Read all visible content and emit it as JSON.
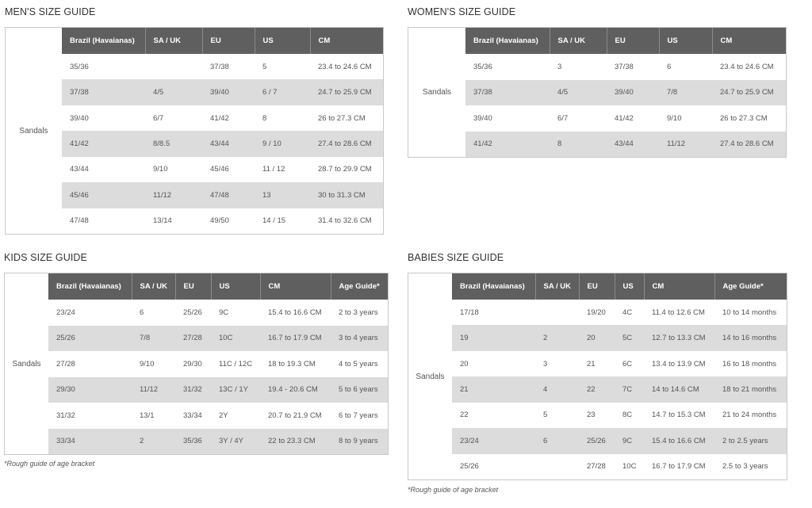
{
  "row_label": "Sandals",
  "footnote": "*Rough guide of age bracket",
  "guides": {
    "men": {
      "title": "MEN'S SIZE GUIDE",
      "headers": [
        "Brazil (Havaianas)",
        "SA / UK",
        "EU",
        "US",
        "CM"
      ],
      "rows": [
        [
          "35/36",
          "",
          "37/38",
          "5",
          "23.4 to 24.6 CM"
        ],
        [
          "37/38",
          "4/5",
          "39/40",
          "6 / 7",
          "24.7 to 25.9 CM"
        ],
        [
          "39/40",
          "6/7",
          "41/42",
          "8",
          "26 to 27.3 CM"
        ],
        [
          "41/42",
          "8/8.5",
          "43/44",
          "9 / 10",
          "27.4 to 28.6 CM"
        ],
        [
          "43/44",
          "9/10",
          "45/46",
          "11 / 12",
          "28.7 to 29.9 CM"
        ],
        [
          "45/46",
          "11/12",
          "47/48",
          "13",
          "30 to 31.3 CM"
        ],
        [
          "47/48",
          "13/14",
          "49/50",
          "14 / 15",
          "31.4 to 32.6 CM"
        ]
      ]
    },
    "women": {
      "title": "WOMEN'S SIZE GUIDE",
      "headers": [
        "Brazil (Havaianas)",
        "SA / UK",
        "EU",
        "US",
        "CM"
      ],
      "rows": [
        [
          "35/36",
          "3",
          "37/38",
          "6",
          "23.4 to 24.6 CM"
        ],
        [
          "37/38",
          "4/5",
          "39/40",
          "7/8",
          "24.7 to 25.9 CM"
        ],
        [
          "39/40",
          "6/7",
          "41/42",
          "9/10",
          "26 to 27.3 CM"
        ],
        [
          "41/42",
          "8",
          "43/44",
          "11/12",
          "27.4 to 28.6 CM"
        ]
      ]
    },
    "kids": {
      "title": "KIDS SIZE GUIDE",
      "headers": [
        "Brazil (Havaianas)",
        "SA / UK",
        "EU",
        "US",
        "CM",
        "Age Guide*"
      ],
      "rows": [
        [
          "23/24",
          "6",
          "25/26",
          "9C",
          "15.4 to 16.6 CM",
          "2 to 3 years"
        ],
        [
          "25/26",
          "7/8",
          "27/28",
          "10C",
          "16.7 to 17.9 CM",
          "3 to 4 years"
        ],
        [
          "27/28",
          "9/10",
          "29/30",
          "11C / 12C",
          "18 to 19.3 CM",
          "4 to 5 years"
        ],
        [
          "29/30",
          "11/12",
          "31/32",
          "13C / 1Y",
          "19.4 - 20.6 CM",
          "5 to 6 years"
        ],
        [
          "31/32",
          "13/1",
          "33/34",
          "2Y",
          "20.7 to 21.9 CM",
          "6 to 7 years"
        ],
        [
          "33/34",
          "2",
          "35/36",
          "3Y / 4Y",
          "22 to 23.3 CM",
          "8 to 9 years"
        ]
      ]
    },
    "babies": {
      "title": "BABIES SIZE GUIDE",
      "headers": [
        "Brazil (Havaianas)",
        "SA / UK",
        "EU",
        "US",
        "CM",
        "Age Guide*"
      ],
      "rows": [
        [
          "17/18",
          "",
          "19/20",
          "4C",
          "11.4 to 12.6 CM",
          "10 to 14 months"
        ],
        [
          "19",
          "2",
          "20",
          "5C",
          "12.7 to 13.3 CM",
          "14 to 16 months"
        ],
        [
          "20",
          "3",
          "21",
          "6C",
          "13.4 to 13.9 CM",
          "16 to 18 months"
        ],
        [
          "21",
          "4",
          "22",
          "7C",
          "14 to 14.6 CM",
          "18 to 21 months"
        ],
        [
          "22",
          "5",
          "23",
          "8C",
          "14.7 to 15.3 CM",
          "21 to 24 months"
        ],
        [
          "23/24",
          "6",
          "25/26",
          "9C",
          "15.4 to 16.6 CM",
          "2 to 2.5 years"
        ],
        [
          "25/26",
          "",
          "27/28",
          "10C",
          "16.7 to 17.9 CM",
          "2.5 to 3 years"
        ]
      ]
    }
  }
}
